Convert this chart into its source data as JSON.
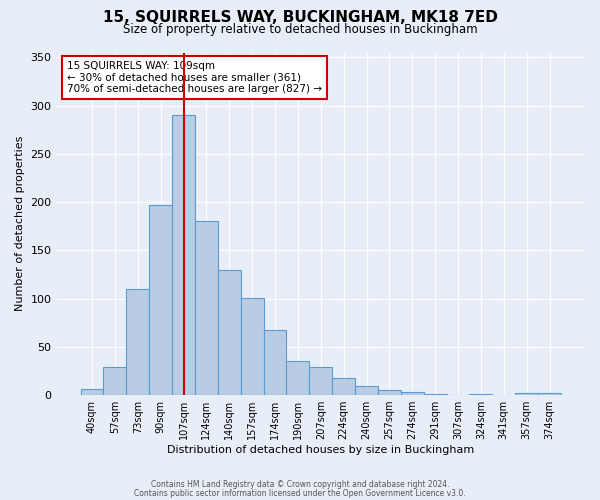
{
  "title": "15, SQUIRRELS WAY, BUCKINGHAM, MK18 7ED",
  "subtitle": "Size of property relative to detached houses in Buckingham",
  "xlabel": "Distribution of detached houses by size in Buckingham",
  "ylabel": "Number of detached properties",
  "bar_labels": [
    "40sqm",
    "57sqm",
    "73sqm",
    "90sqm",
    "107sqm",
    "124sqm",
    "140sqm",
    "157sqm",
    "174sqm",
    "190sqm",
    "207sqm",
    "224sqm",
    "240sqm",
    "257sqm",
    "274sqm",
    "291sqm",
    "307sqm",
    "324sqm",
    "341sqm",
    "357sqm",
    "374sqm"
  ],
  "bar_values": [
    6,
    29,
    110,
    197,
    290,
    180,
    130,
    101,
    67,
    35,
    29,
    18,
    9,
    5,
    3,
    1,
    0,
    1,
    0,
    2,
    2
  ],
  "bar_color": "#b8cce4",
  "bar_edge_color": "#5b9bd5",
  "vline_x": 4,
  "vline_color": "#cc0000",
  "annotation_text": "15 SQUIRRELS WAY: 109sqm\n← 30% of detached houses are smaller (361)\n70% of semi-detached houses are larger (827) →",
  "annotation_box_color": "#ffffff",
  "annotation_box_edge_color": "#cc0000",
  "ylim": [
    0,
    355
  ],
  "background_color": "#e8eef7",
  "footer_line1": "Contains HM Land Registry data © Crown copyright and database right 2024.",
  "footer_line2": "Contains public sector information licensed under the Open Government Licence v3.0."
}
